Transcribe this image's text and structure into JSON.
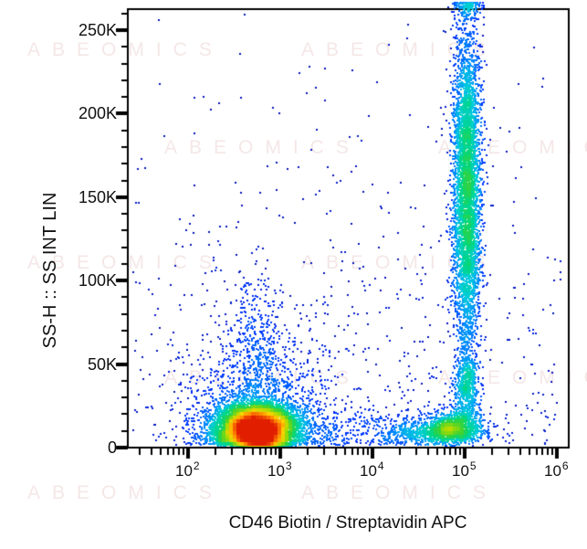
{
  "watermark": {
    "text": "ABEOMICS"
  },
  "chart_data": {
    "type": "scatter",
    "subtype": "flow-cytometry-pseudocolor-density-dot-plot",
    "title": "",
    "xlabel": "CD46 Biotin / Streptavidin APC",
    "ylabel": "SS-H :: SS INT LIN",
    "legend": "none",
    "grid": false,
    "x_axis": {
      "scale": "log",
      "min_exponent": 1.35,
      "max_exponent": 6.13,
      "major_ticks": [
        {
          "base": "10",
          "exp": "2",
          "value": 100
        },
        {
          "base": "10",
          "exp": "3",
          "value": 1000
        },
        {
          "base": "10",
          "exp": "4",
          "value": 10000
        },
        {
          "base": "10",
          "exp": "5",
          "value": 100000
        },
        {
          "base": "10",
          "exp": "6",
          "value": 1000000
        }
      ],
      "minor_tick_mantissas": [
        2,
        3,
        4,
        5,
        6,
        7,
        8,
        9
      ]
    },
    "y_axis": {
      "scale": "linear",
      "min": 0,
      "max": 262000,
      "major_ticks": [
        {
          "label": "0",
          "value": 0
        },
        {
          "label": "50K",
          "value": 50000
        },
        {
          "label": "100K",
          "value": 100000
        },
        {
          "label": "150K",
          "value": 150000
        },
        {
          "label": "200K",
          "value": 200000
        },
        {
          "label": "250K",
          "value": 250000
        }
      ],
      "minor_tick_step": 10000
    },
    "density_palette": {
      "description": "jet-like pseudocolor: sparse=dark blue, dense=red",
      "stops": [
        [
          0.0,
          [
            10,
            10,
            160
          ]
        ],
        [
          0.12,
          [
            0,
            51,
            255
          ]
        ],
        [
          0.25,
          [
            0,
            140,
            255
          ]
        ],
        [
          0.37,
          [
            0,
            204,
            221
          ]
        ],
        [
          0.48,
          [
            0,
            215,
            130
          ]
        ],
        [
          0.58,
          [
            60,
            210,
            50
          ]
        ],
        [
          0.68,
          [
            170,
            220,
            0
          ]
        ],
        [
          0.78,
          [
            255,
            210,
            0
          ]
        ],
        [
          0.88,
          [
            255,
            130,
            0
          ]
        ],
        [
          1.0,
          [
            225,
            30,
            0
          ]
        ]
      ],
      "density_ref": 420,
      "gamma": 0.55
    },
    "populations": [
      {
        "name": "cd46neg-main-cluster",
        "count": 8000,
        "x": {
          "dist": "gauss-log",
          "mean": 2.75,
          "sigma": 0.22
        },
        "y": {
          "dist": "gauss",
          "mean": 11000,
          "sigma": 7500,
          "fold_at_zero": true
        }
      },
      {
        "name": "cd46neg-bottom-axis-pileup-band",
        "count": 700,
        "x": {
          "dist": "gauss-log",
          "mean": 2.78,
          "sigma": 0.15
        },
        "y": {
          "dist": "uniform",
          "min": 0,
          "max": 1300
        }
      },
      {
        "name": "cd46neg-halo",
        "count": 1300,
        "x": {
          "dist": "gauss-log",
          "mean": 2.78,
          "sigma": 0.4
        },
        "y": {
          "dist": "gauss",
          "mean": 14000,
          "sigma": 30000,
          "fold_at_zero": true
        }
      },
      {
        "name": "cd46neg-vertical-tail",
        "count": 380,
        "x": {
          "dist": "gauss-log",
          "mean": 2.76,
          "sigma": 0.13
        },
        "y": {
          "dist": "gauss",
          "mean": 55000,
          "sigma": 30000,
          "fold_at_zero": true
        }
      },
      {
        "name": "cd46pos-low-ssc-blob",
        "count": 1300,
        "x": {
          "dist": "gauss-log",
          "mean": 4.87,
          "sigma": 0.17
        },
        "y": {
          "dist": "gauss",
          "mean": 10500,
          "sigma": 4600,
          "fold_at_zero": true
        }
      },
      {
        "name": "cd46pos-low-ssc-left-tail",
        "count": 400,
        "x": {
          "dist": "gauss-log",
          "mean": 4.5,
          "sigma": 0.22
        },
        "y": {
          "dist": "gauss",
          "mean": 8500,
          "sigma": 4000,
          "fold_at_zero": true
        }
      },
      {
        "name": "cd46pos-high-ssc-column",
        "count": 4600,
        "x": {
          "dist": "gauss-log",
          "mean": 5.03,
          "sigma": 0.075
        },
        "y": {
          "dist": "gauss",
          "mean": 152000,
          "sigma": 50000,
          "fold_at_zero": true,
          "clamp_top": {
            "threshold": 255000,
            "spread": 11500
          }
        }
      },
      {
        "name": "cd46pos-column-top-pileup",
        "count": 100,
        "x": {
          "dist": "gauss-log",
          "mean": 5.04,
          "sigma": 0.08
        },
        "y": {
          "dist": "uniform",
          "min": 262500,
          "max": 266500
        }
      },
      {
        "name": "cd46pos-column-lower-bulge",
        "count": 300,
        "x": {
          "dist": "gauss-log",
          "mean": 5.03,
          "sigma": 0.06
        },
        "y": {
          "dist": "gauss",
          "mean": 42000,
          "sigma": 6500,
          "fold_at_zero": true
        }
      },
      {
        "name": "cd46pos-neck",
        "count": 320,
        "x": {
          "dist": "gauss-log",
          "mean": 5.01,
          "sigma": 0.07
        },
        "y": {
          "dist": "uniform",
          "min": 15000,
          "max": 38000
        }
      },
      {
        "name": "mid-low-scatter",
        "count": 260,
        "x": {
          "dist": "uniform-log",
          "min": 3.2,
          "max": 4.4
        },
        "y": {
          "dist": "gauss",
          "mean": 8000,
          "sigma": 9000,
          "fold_at_zero": true
        }
      },
      {
        "name": "background-low",
        "count": 520,
        "x": {
          "dist": "uniform-log",
          "min": 1.4,
          "max": 6.05
        },
        "y": {
          "dist": "gauss",
          "mean": 0,
          "sigma": 70000,
          "fold_at_zero": true
        }
      },
      {
        "name": "background-uniform",
        "count": 150,
        "x": {
          "dist": "uniform-log",
          "min": 1.4,
          "max": 6.05
        },
        "y": {
          "dist": "uniform",
          "min": 0,
          "max": 260000
        }
      }
    ]
  }
}
